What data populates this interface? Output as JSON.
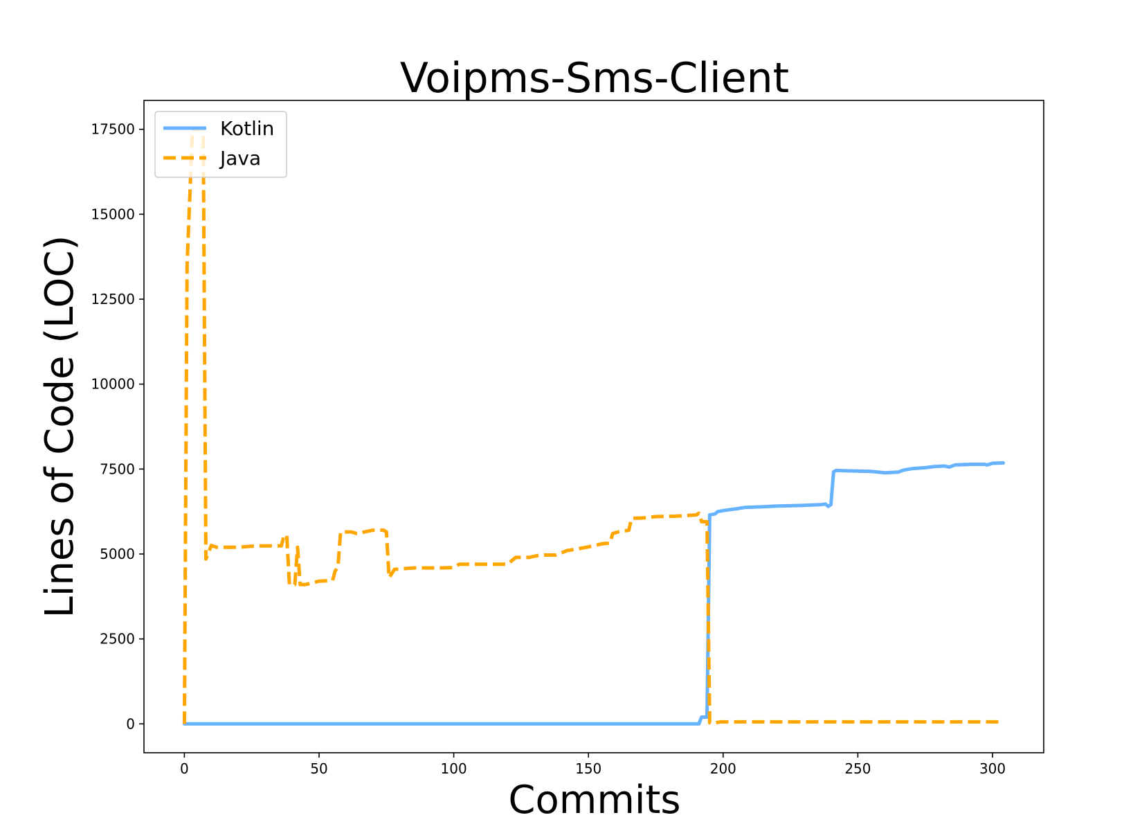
{
  "chart_data": {
    "type": "line",
    "title": "Voipms-Sms-Client",
    "xlabel": "Commits",
    "ylabel": "Lines of Code (LOC)",
    "xlim": [
      -15,
      319
    ],
    "ylim": [
      -850,
      18350
    ],
    "x_ticks": [
      0,
      50,
      100,
      150,
      200,
      250,
      300
    ],
    "y_ticks": [
      0,
      2500,
      5000,
      7500,
      10000,
      12500,
      15000,
      17500
    ],
    "legend_position": "upper-left",
    "grid": false,
    "series": [
      {
        "name": "Kotlin",
        "color": "#66b2ff",
        "style": "solid",
        "points": [
          [
            0,
            0
          ],
          [
            191,
            0
          ],
          [
            192,
            200
          ],
          [
            194,
            200
          ],
          [
            195,
            6150
          ],
          [
            197,
            6180
          ],
          [
            198,
            6250
          ],
          [
            202,
            6300
          ],
          [
            205,
            6330
          ],
          [
            208,
            6370
          ],
          [
            215,
            6390
          ],
          [
            220,
            6410
          ],
          [
            230,
            6430
          ],
          [
            236,
            6450
          ],
          [
            238,
            6470
          ],
          [
            239,
            6400
          ],
          [
            240,
            6450
          ],
          [
            241,
            7420
          ],
          [
            242,
            7460
          ],
          [
            245,
            7450
          ],
          [
            250,
            7440
          ],
          [
            255,
            7430
          ],
          [
            260,
            7390
          ],
          [
            265,
            7410
          ],
          [
            267,
            7470
          ],
          [
            270,
            7510
          ],
          [
            275,
            7540
          ],
          [
            278,
            7570
          ],
          [
            282,
            7590
          ],
          [
            284,
            7560
          ],
          [
            286,
            7620
          ],
          [
            292,
            7640
          ],
          [
            297,
            7640
          ],
          [
            298,
            7620
          ],
          [
            300,
            7670
          ],
          [
            304,
            7680
          ]
        ]
      },
      {
        "name": "Java",
        "color": "#ffa500",
        "style": "dashed",
        "points": [
          [
            0,
            0
          ],
          [
            1,
            13500
          ],
          [
            3,
            17500
          ],
          [
            7,
            17500
          ],
          [
            8,
            4850
          ],
          [
            10,
            5250
          ],
          [
            12,
            5200
          ],
          [
            20,
            5200
          ],
          [
            25,
            5230
          ],
          [
            30,
            5240
          ],
          [
            36,
            5240
          ],
          [
            37,
            5550
          ],
          [
            38,
            5550
          ],
          [
            39,
            4100
          ],
          [
            41,
            4100
          ],
          [
            42,
            5200
          ],
          [
            43,
            4100
          ],
          [
            45,
            4100
          ],
          [
            50,
            4200
          ],
          [
            55,
            4220
          ],
          [
            56,
            4500
          ],
          [
            57,
            4600
          ],
          [
            58,
            5650
          ],
          [
            62,
            5650
          ],
          [
            64,
            5600
          ],
          [
            67,
            5650
          ],
          [
            70,
            5700
          ],
          [
            74,
            5700
          ],
          [
            75,
            5650
          ],
          [
            76,
            4300
          ],
          [
            78,
            4550
          ],
          [
            85,
            4590
          ],
          [
            95,
            4590
          ],
          [
            100,
            4600
          ],
          [
            102,
            4700
          ],
          [
            110,
            4700
          ],
          [
            120,
            4700
          ],
          [
            123,
            4900
          ],
          [
            128,
            4900
          ],
          [
            132,
            4970
          ],
          [
            138,
            4970
          ],
          [
            142,
            5100
          ],
          [
            146,
            5150
          ],
          [
            150,
            5210
          ],
          [
            155,
            5300
          ],
          [
            158,
            5320
          ],
          [
            159,
            5600
          ],
          [
            161,
            5650
          ],
          [
            165,
            5700
          ],
          [
            166,
            6050
          ],
          [
            170,
            6060
          ],
          [
            175,
            6100
          ],
          [
            182,
            6110
          ],
          [
            190,
            6150
          ],
          [
            191,
            6200
          ],
          [
            192,
            5950
          ],
          [
            194,
            5950
          ],
          [
            195,
            30
          ],
          [
            197,
            30
          ],
          [
            199,
            60
          ],
          [
            304,
            60
          ]
        ]
      }
    ]
  }
}
